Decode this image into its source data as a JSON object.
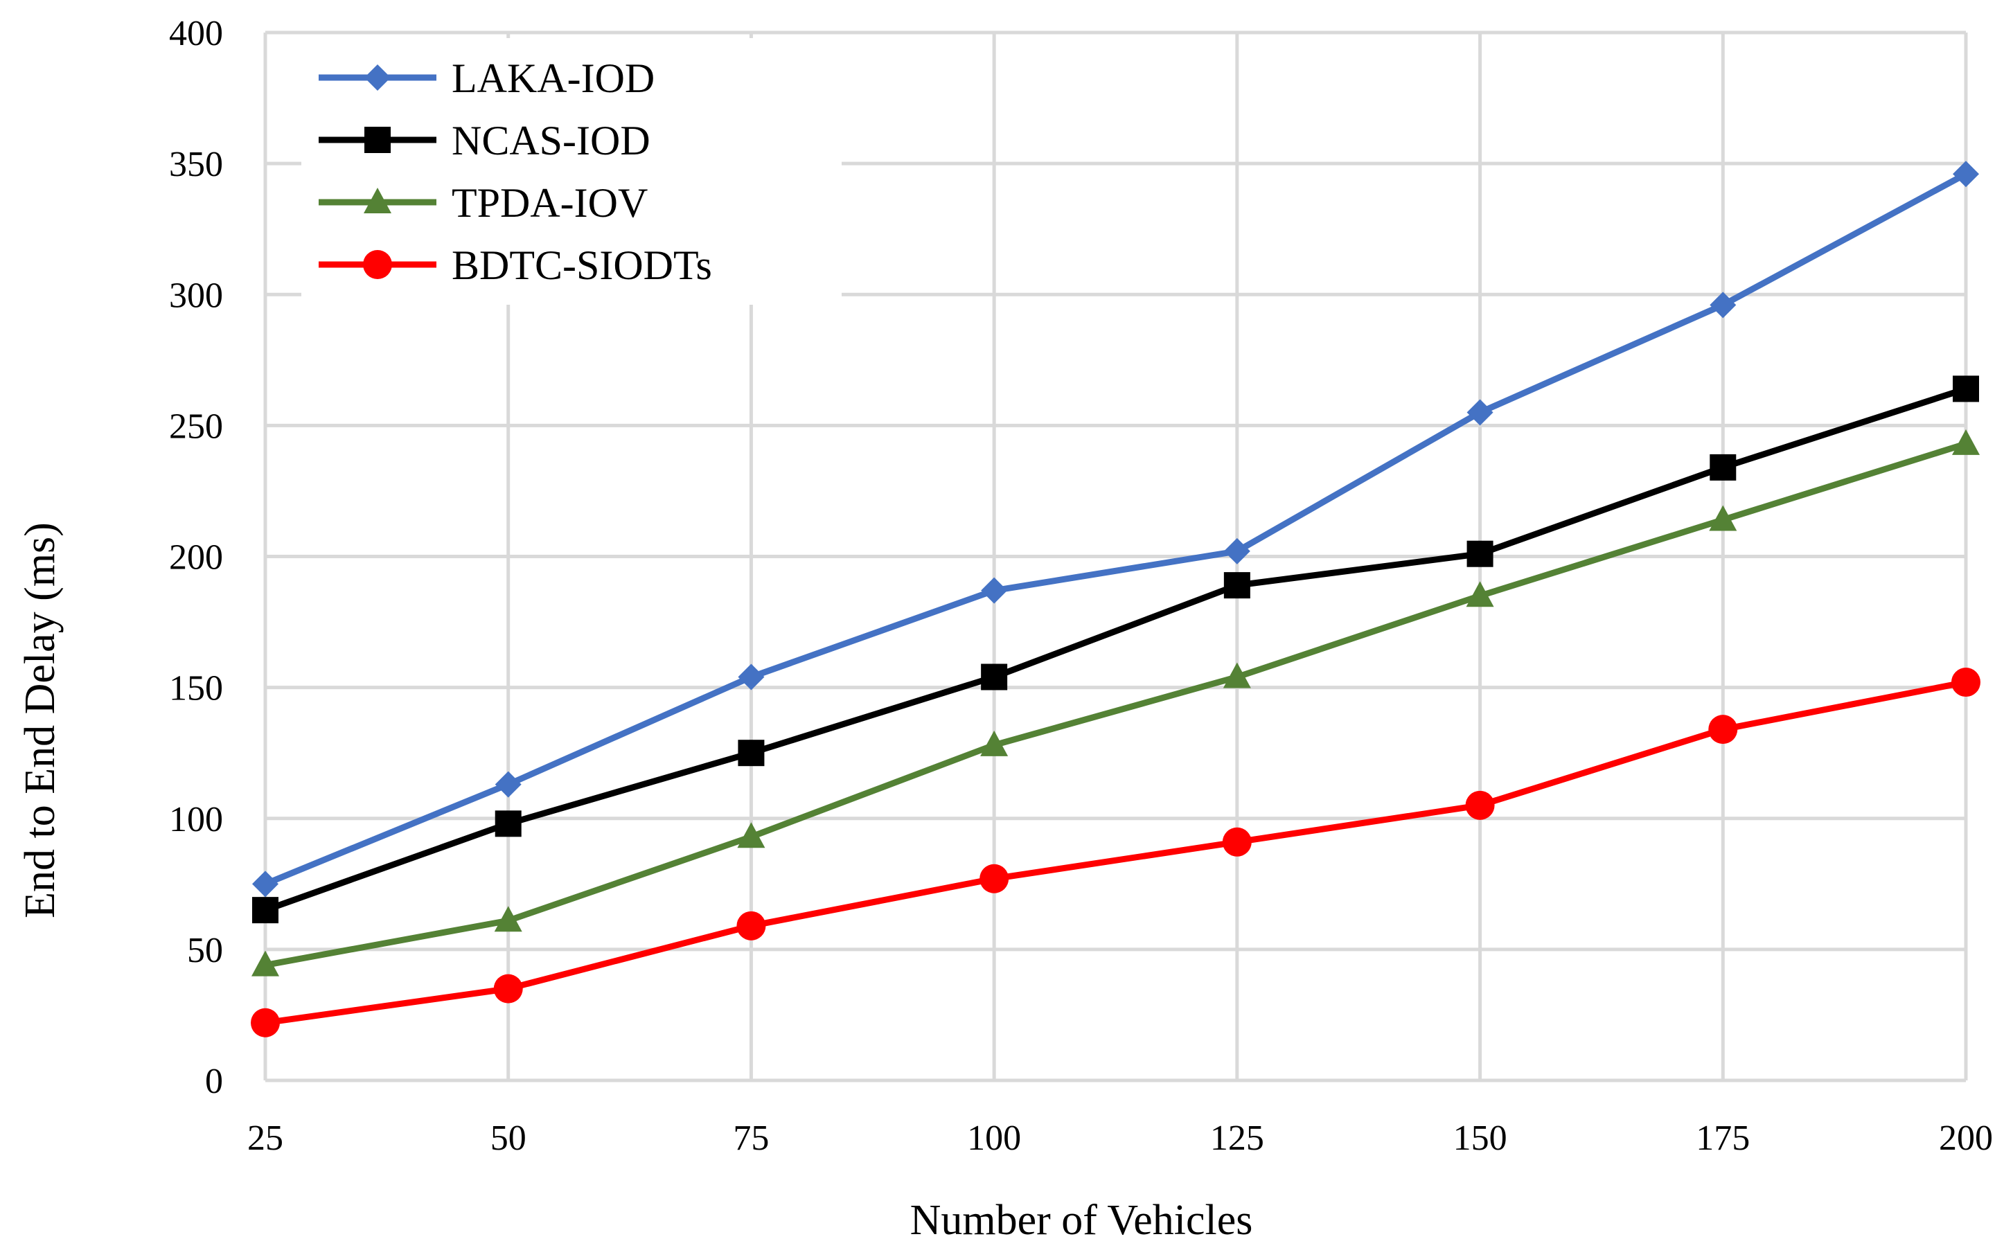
{
  "chart_data": {
    "type": "line",
    "title": "",
    "xlabel": "Number of Vehicles",
    "ylabel": "End to End Delay  (ms)",
    "x": [
      25,
      50,
      75,
      100,
      125,
      150,
      175,
      200
    ],
    "x_tick_labels": [
      "25",
      "50",
      "75",
      "100",
      "125",
      "150",
      "175",
      "200"
    ],
    "ylim": [
      0,
      400
    ],
    "y_ticks": [
      0,
      50,
      100,
      150,
      200,
      250,
      300,
      350,
      400
    ],
    "y_tick_labels": [
      "0",
      "50",
      "100",
      "150",
      "200",
      "250",
      "300",
      "350",
      "400"
    ],
    "grid": true,
    "legend_position": "top-left",
    "series": [
      {
        "name": "LAKA-IOD",
        "color": "#4472C4",
        "marker": "diamond",
        "values": [
          75,
          113,
          154,
          187,
          202,
          255,
          296,
          346
        ]
      },
      {
        "name": "NCAS-IOD",
        "color": "#000000",
        "marker": "square",
        "values": [
          65,
          98,
          125,
          154,
          189,
          201,
          234,
          264
        ]
      },
      {
        "name": "TPDA-IOV",
        "color": "#548235",
        "marker": "triangle",
        "values": [
          44,
          61,
          93,
          128,
          154,
          185,
          214,
          243
        ]
      },
      {
        "name": "BDTC-SIODTs",
        "color": "#FF0000",
        "marker": "circle",
        "values": [
          22,
          35,
          59,
          77,
          91,
          105,
          134,
          152
        ]
      }
    ]
  }
}
